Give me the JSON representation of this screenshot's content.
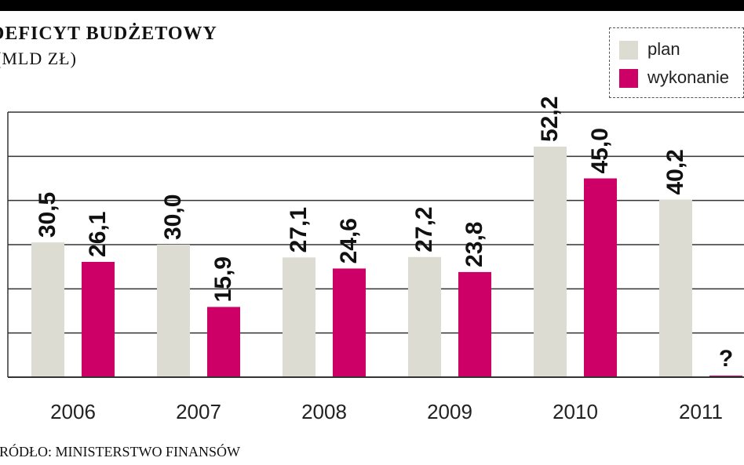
{
  "chart_data": {
    "type": "bar",
    "title": "DEFICYT BUDŻETOWY",
    "subtitle": "(MLD ZŁ)",
    "categories": [
      "2006",
      "2007",
      "2008",
      "2009",
      "2010",
      "2011"
    ],
    "series": [
      {
        "name": "plan",
        "values": [
          30.5,
          30.0,
          27.1,
          27.2,
          52.2,
          40.2
        ],
        "labels": [
          "30,5",
          "30,0",
          "27,1",
          "27,2",
          "52,2",
          "40,2"
        ],
        "color": "#dcdcd2"
      },
      {
        "name": "wykonanie",
        "values": [
          26.1,
          15.9,
          24.6,
          23.8,
          45.0,
          null
        ],
        "labels": [
          "26,1",
          "15,9",
          "24,6",
          "23,8",
          "45,0",
          "?"
        ],
        "color": "#cc0066"
      }
    ],
    "ylim": [
      0,
      60
    ],
    "grid": true,
    "legend_position": "top-right",
    "source": "ŹRÓDŁO: MINISTERSTWO FINANSÓW"
  }
}
